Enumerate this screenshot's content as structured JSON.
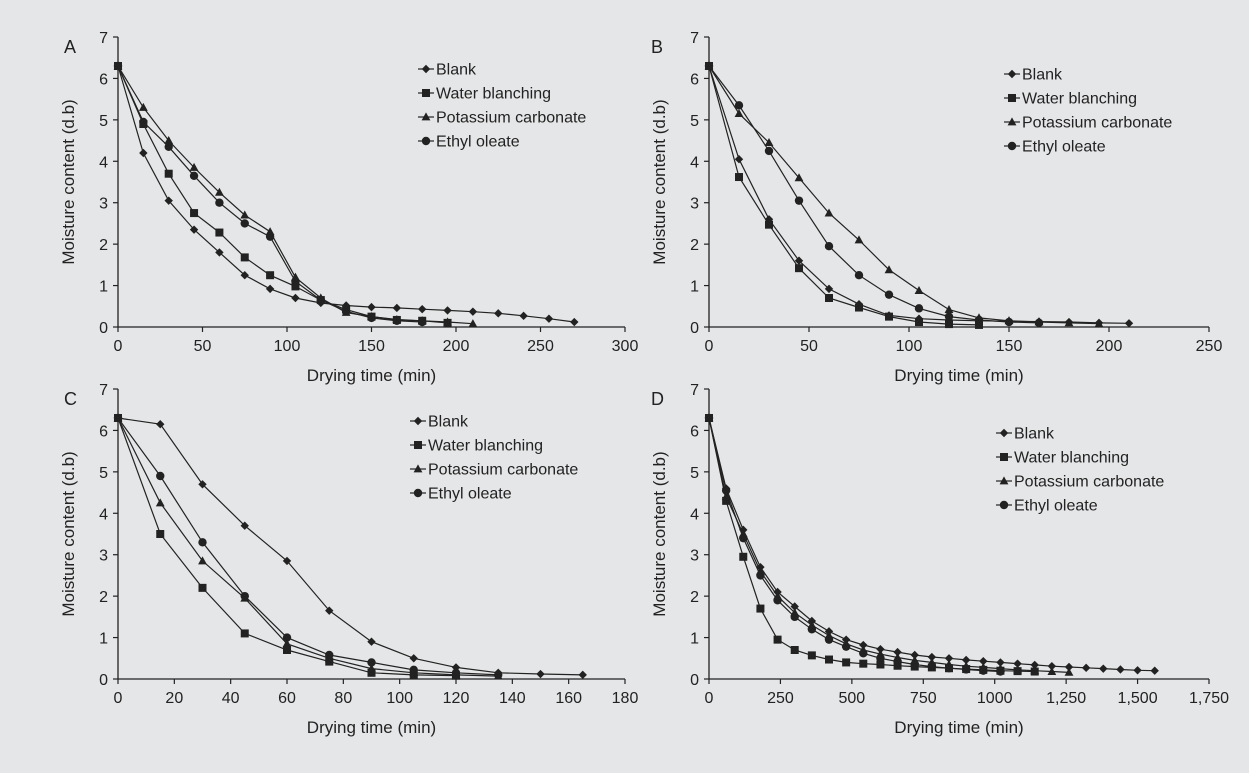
{
  "chart_data": [
    {
      "type": "line",
      "panel_label": "A",
      "xlabel": "Drying time (min)",
      "ylabel": "Moisture content (d.b)",
      "xlim": [
        0,
        300
      ],
      "ylim": [
        0,
        7
      ],
      "xticks": [
        0,
        50,
        100,
        150,
        200,
        250,
        300
      ],
      "yticks": [
        0,
        1,
        2,
        3,
        4,
        5,
        6,
        7
      ],
      "xtick_labels": [
        "0",
        "50",
        "100",
        "150",
        "200",
        "250",
        "300"
      ],
      "ytick_labels": [
        "0",
        "1",
        "2",
        "3",
        "4",
        "5",
        "6",
        "7"
      ],
      "grid": false,
      "legend_position": "top-right",
      "series": [
        {
          "name": "Blank",
          "marker": "diamond",
          "x": [
            0,
            15,
            30,
            45,
            60,
            75,
            90,
            105,
            120,
            135,
            150,
            165,
            180,
            195,
            210,
            225,
            240,
            255,
            270
          ],
          "y": [
            6.3,
            4.2,
            3.05,
            2.35,
            1.8,
            1.25,
            0.92,
            0.7,
            0.58,
            0.52,
            0.48,
            0.46,
            0.43,
            0.4,
            0.37,
            0.33,
            0.27,
            0.2,
            0.12
          ]
        },
        {
          "name": "Water blanching",
          "marker": "square",
          "x": [
            0,
            15,
            30,
            45,
            60,
            75,
            90,
            105,
            120,
            135,
            150,
            165,
            180,
            195
          ],
          "y": [
            6.3,
            4.9,
            3.7,
            2.75,
            2.28,
            1.68,
            1.25,
            0.98,
            0.65,
            0.42,
            0.25,
            0.17,
            0.15,
            0.1
          ]
        },
        {
          "name": "Potassium carbonate",
          "marker": "triangle",
          "x": [
            0,
            15,
            30,
            45,
            60,
            75,
            90,
            105,
            120,
            135,
            150,
            165,
            180,
            195,
            210
          ],
          "y": [
            6.3,
            5.3,
            4.5,
            3.85,
            3.25,
            2.7,
            2.3,
            1.2,
            0.7,
            0.35,
            0.25,
            0.18,
            0.15,
            0.12,
            0.08
          ]
        },
        {
          "name": "Ethyl oleate",
          "marker": "circle",
          "x": [
            0,
            15,
            30,
            45,
            60,
            75,
            90,
            105,
            120,
            135,
            150,
            165,
            180
          ],
          "y": [
            6.3,
            4.95,
            4.35,
            3.65,
            3.0,
            2.5,
            2.18,
            1.1,
            0.65,
            0.38,
            0.22,
            0.15,
            0.12
          ]
        }
      ]
    },
    {
      "type": "line",
      "panel_label": "B",
      "xlabel": "Drying time (min)",
      "ylabel": "Moisture content (d.b)",
      "xlim": [
        0,
        250
      ],
      "ylim": [
        0,
        7
      ],
      "xticks": [
        0,
        50,
        100,
        150,
        200,
        250
      ],
      "yticks": [
        0,
        1,
        2,
        3,
        4,
        5,
        6,
        7
      ],
      "xtick_labels": [
        "0",
        "50",
        "100",
        "150",
        "200",
        "250"
      ],
      "ytick_labels": [
        "0",
        "1",
        "2",
        "3",
        "4",
        "5",
        "6",
        "7"
      ],
      "grid": false,
      "legend_position": "top-right",
      "series": [
        {
          "name": "Blank",
          "marker": "diamond",
          "x": [
            0,
            15,
            30,
            45,
            60,
            75,
            90,
            105,
            120,
            135,
            150,
            165,
            180,
            195,
            210
          ],
          "y": [
            6.3,
            4.05,
            2.6,
            1.6,
            0.92,
            0.55,
            0.28,
            0.2,
            0.17,
            0.15,
            0.14,
            0.13,
            0.12,
            0.1,
            0.09
          ]
        },
        {
          "name": "Water blanching",
          "marker": "square",
          "x": [
            0,
            15,
            30,
            45,
            60,
            75,
            90,
            105,
            120,
            135
          ],
          "y": [
            6.3,
            3.62,
            2.47,
            1.42,
            0.7,
            0.47,
            0.25,
            0.12,
            0.07,
            0.05
          ]
        },
        {
          "name": "Potassium carbonate",
          "marker": "triangle",
          "x": [
            0,
            15,
            30,
            45,
            60,
            75,
            90,
            105,
            120,
            135,
            150,
            165,
            180,
            195
          ],
          "y": [
            6.3,
            5.15,
            4.45,
            3.6,
            2.75,
            2.1,
            1.38,
            0.88,
            0.42,
            0.22,
            0.15,
            0.12,
            0.1,
            0.08
          ]
        },
        {
          "name": "Ethyl oleate",
          "marker": "circle",
          "x": [
            0,
            15,
            30,
            45,
            60,
            75,
            90,
            105,
            120,
            135,
            150,
            165
          ],
          "y": [
            6.3,
            5.35,
            4.25,
            3.05,
            1.95,
            1.25,
            0.78,
            0.45,
            0.25,
            0.17,
            0.12,
            0.1
          ]
        }
      ]
    },
    {
      "type": "line",
      "panel_label": "C",
      "xlabel": "Drying time (min)",
      "ylabel": "Moisture content (d.b)",
      "xlim": [
        0,
        180
      ],
      "ylim": [
        0,
        7
      ],
      "xticks": [
        0,
        20,
        40,
        60,
        80,
        100,
        120,
        140,
        160,
        180
      ],
      "yticks": [
        0,
        1,
        2,
        3,
        4,
        5,
        6,
        7
      ],
      "xtick_labels": [
        "0",
        "20",
        "40",
        "60",
        "80",
        "100",
        "120",
        "140",
        "160",
        "180"
      ],
      "ytick_labels": [
        "0",
        "1",
        "2",
        "3",
        "4",
        "5",
        "6",
        "7"
      ],
      "grid": false,
      "legend_position": "top-right",
      "series": [
        {
          "name": "Blank",
          "marker": "diamond",
          "x": [
            0,
            15,
            30,
            45,
            60,
            75,
            90,
            105,
            120,
            135,
            150,
            165
          ],
          "y": [
            6.3,
            6.15,
            4.7,
            3.7,
            2.85,
            1.65,
            0.9,
            0.5,
            0.28,
            0.15,
            0.12,
            0.1
          ]
        },
        {
          "name": "Water blanching",
          "marker": "square",
          "x": [
            0,
            15,
            30,
            45,
            60,
            75,
            90,
            105,
            120
          ],
          "y": [
            6.3,
            3.5,
            2.2,
            1.1,
            0.7,
            0.42,
            0.15,
            0.1,
            0.08
          ]
        },
        {
          "name": "Potassium carbonate",
          "marker": "triangle",
          "x": [
            0,
            15,
            30,
            45,
            60,
            75,
            90,
            105,
            120,
            135
          ],
          "y": [
            6.3,
            4.25,
            2.85,
            1.95,
            0.85,
            0.5,
            0.25,
            0.15,
            0.1,
            0.07
          ]
        },
        {
          "name": "Ethyl oleate",
          "marker": "circle",
          "x": [
            0,
            15,
            30,
            45,
            60,
            75,
            90,
            105,
            120,
            135
          ],
          "y": [
            6.3,
            4.9,
            3.3,
            2.0,
            1.0,
            0.58,
            0.4,
            0.22,
            0.15,
            0.1
          ]
        }
      ]
    },
    {
      "type": "line",
      "panel_label": "D",
      "xlabel": "Drying time (min)",
      "ylabel": "Moisture content (d.b)",
      "xlim": [
        0,
        1750
      ],
      "ylim": [
        0,
        7
      ],
      "xticks": [
        0,
        250,
        500,
        750,
        1000,
        1250,
        1500,
        1750
      ],
      "yticks": [
        0,
        1,
        2,
        3,
        4,
        5,
        6,
        7
      ],
      "xtick_labels": [
        "0",
        "250",
        "500",
        "750",
        "1000",
        "1,250",
        "1,500",
        "1,750"
      ],
      "ytick_labels": [
        "0",
        "1",
        "2",
        "3",
        "4",
        "5",
        "6",
        "7"
      ],
      "grid": false,
      "legend_position": "top-right",
      "series": [
        {
          "name": "Blank",
          "marker": "diamond",
          "x": [
            0,
            60,
            120,
            180,
            240,
            300,
            360,
            420,
            480,
            540,
            600,
            660,
            720,
            780,
            840,
            900,
            960,
            1020,
            1080,
            1140,
            1200,
            1260,
            1320,
            1380,
            1440,
            1500,
            1560
          ],
          "y": [
            6.3,
            4.6,
            3.6,
            2.7,
            2.1,
            1.75,
            1.4,
            1.15,
            0.95,
            0.82,
            0.72,
            0.65,
            0.58,
            0.53,
            0.5,
            0.46,
            0.43,
            0.4,
            0.37,
            0.34,
            0.31,
            0.29,
            0.27,
            0.25,
            0.23,
            0.21,
            0.2
          ]
        },
        {
          "name": "Water blanching",
          "marker": "square",
          "x": [
            0,
            60,
            120,
            180,
            240,
            300,
            360,
            420,
            480,
            540,
            600,
            660,
            720,
            780,
            840,
            900,
            960,
            1020,
            1080,
            1140
          ],
          "y": [
            6.3,
            4.3,
            2.95,
            1.7,
            0.95,
            0.7,
            0.57,
            0.47,
            0.4,
            0.37,
            0.35,
            0.32,
            0.3,
            0.28,
            0.26,
            0.24,
            0.22,
            0.2,
            0.19,
            0.18
          ]
        },
        {
          "name": "Potassium carbonate",
          "marker": "triangle",
          "x": [
            0,
            60,
            120,
            180,
            240,
            300,
            360,
            420,
            480,
            540,
            600,
            660,
            720,
            780,
            840,
            900,
            960,
            1020,
            1080,
            1140,
            1200,
            1260
          ],
          "y": [
            6.3,
            4.4,
            3.5,
            2.6,
            2.0,
            1.6,
            1.3,
            1.05,
            0.85,
            0.7,
            0.6,
            0.52,
            0.45,
            0.4,
            0.35,
            0.31,
            0.28,
            0.25,
            0.22,
            0.2,
            0.18,
            0.16
          ]
        },
        {
          "name": "Ethyl oleate",
          "marker": "circle",
          "x": [
            0,
            60,
            120,
            180,
            240,
            300,
            360,
            420,
            480,
            540,
            600,
            660,
            720,
            780,
            840,
            900,
            960,
            1020
          ],
          "y": [
            6.3,
            4.55,
            3.4,
            2.5,
            1.9,
            1.5,
            1.2,
            0.95,
            0.78,
            0.62,
            0.5,
            0.42,
            0.35,
            0.3,
            0.26,
            0.23,
            0.2,
            0.18
          ]
        }
      ]
    }
  ]
}
